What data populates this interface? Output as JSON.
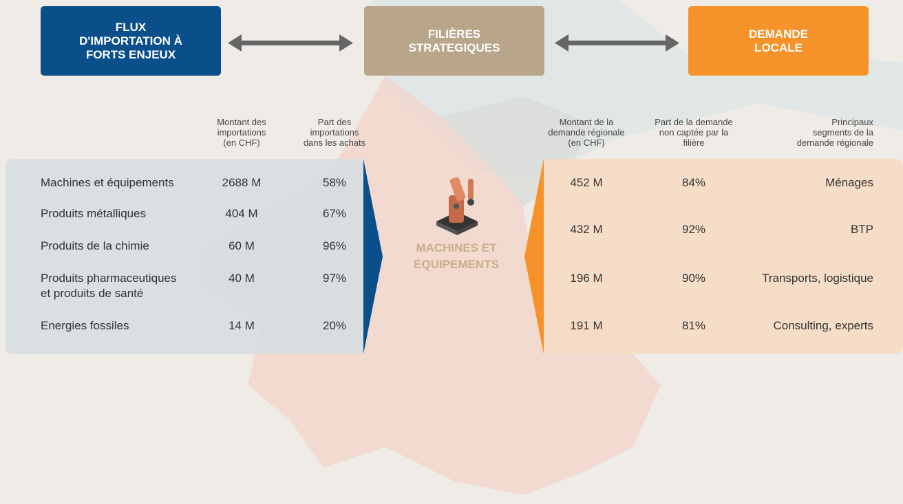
{
  "headers": [
    {
      "lines": [
        "FLUX",
        "D'IMPORTATION À",
        "FORTS ENJEUX"
      ]
    },
    {
      "lines": [
        "FILIÈRES",
        "STRATEGIQUES"
      ]
    },
    {
      "lines": [
        "DEMANDE",
        "LOCALE"
      ]
    }
  ],
  "imports": {
    "columns": [
      {
        "lines": [
          "Montant des",
          "importations",
          "(en CHF)"
        ]
      },
      {
        "lines": [
          "Part des",
          "importations",
          "dans les achats"
        ]
      }
    ],
    "rows": [
      {
        "name": [
          "Machines et équipements"
        ],
        "amount": "2688 M",
        "share": "58%"
      },
      {
        "name": [
          "Produits métalliques"
        ],
        "amount": "404 M",
        "share": "67%"
      },
      {
        "name": [
          "Produits de la chimie"
        ],
        "amount": "60 M",
        "share": "96%"
      },
      {
        "name": [
          "Produits pharmaceutiques",
          "et produits de santé"
        ],
        "amount": "40 M",
        "share": "97%"
      },
      {
        "name": [
          "Energies fossiles"
        ],
        "amount": "14 M",
        "share": "20%"
      }
    ]
  },
  "center": {
    "lines": [
      "MACHINES ET",
      "ÉQUIPEMENTS"
    ]
  },
  "demand": {
    "columns": [
      {
        "lines": [
          "Montant de la",
          "demande régionale",
          "(en CHF)"
        ]
      },
      {
        "lines": [
          "Part de la demande",
          "non captée par la",
          "filière"
        ]
      },
      {
        "lines": [
          "Principaux",
          "segments de la",
          "demande régionale"
        ]
      }
    ],
    "rows": [
      {
        "amount": "452 M",
        "share": "84%",
        "segment": "Ménages"
      },
      {
        "amount": "432 M",
        "share": "92%",
        "segment": "BTP"
      },
      {
        "amount": "196 M",
        "share": "90%",
        "segment": "Transports, logistique"
      },
      {
        "amount": "191 M",
        "share": "81%",
        "segment": "Consulting, experts"
      }
    ]
  }
}
